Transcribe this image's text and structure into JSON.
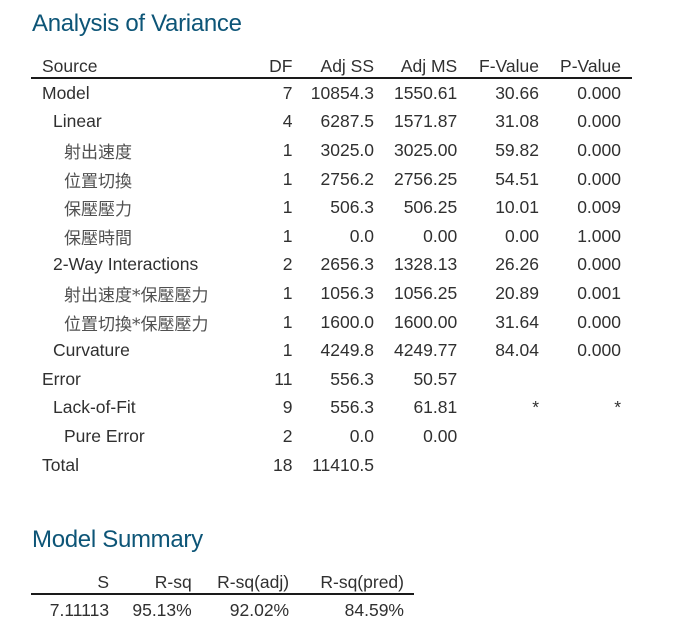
{
  "anova": {
    "title": "Analysis of Variance",
    "columns": [
      "Source",
      "DF",
      "Adj SS",
      "Adj MS",
      "F-Value",
      "P-Value"
    ],
    "rows": [
      {
        "source": "Model",
        "level": 0,
        "df": "7",
        "adj_ss": "10854.3",
        "adj_ms": "1550.61",
        "f_value": "30.66",
        "p_value": "0.000"
      },
      {
        "source": "Linear",
        "level": 1,
        "df": "4",
        "adj_ss": "6287.5",
        "adj_ms": "1571.87",
        "f_value": "31.08",
        "p_value": "0.000"
      },
      {
        "source": "射出速度",
        "level": 2,
        "df": "1",
        "adj_ss": "3025.0",
        "adj_ms": "3025.00",
        "f_value": "59.82",
        "p_value": "0.000"
      },
      {
        "source": "位置切換",
        "level": 2,
        "df": "1",
        "adj_ss": "2756.2",
        "adj_ms": "2756.25",
        "f_value": "54.51",
        "p_value": "0.000"
      },
      {
        "source": "保壓壓力",
        "level": 2,
        "df": "1",
        "adj_ss": "506.3",
        "adj_ms": "506.25",
        "f_value": "10.01",
        "p_value": "0.009"
      },
      {
        "source": "保壓時間",
        "level": 2,
        "df": "1",
        "adj_ss": "0.0",
        "adj_ms": "0.00",
        "f_value": "0.00",
        "p_value": "1.000"
      },
      {
        "source": "2-Way Interactions",
        "level": 1,
        "df": "2",
        "adj_ss": "2656.3",
        "adj_ms": "1328.13",
        "f_value": "26.26",
        "p_value": "0.000"
      },
      {
        "source": "射出速度*保壓壓力",
        "level": 2,
        "df": "1",
        "adj_ss": "1056.3",
        "adj_ms": "1056.25",
        "f_value": "20.89",
        "p_value": "0.001"
      },
      {
        "source": "位置切換*保壓壓力",
        "level": 2,
        "df": "1",
        "adj_ss": "1600.0",
        "adj_ms": "1600.00",
        "f_value": "31.64",
        "p_value": "0.000"
      },
      {
        "source": "Curvature",
        "level": 1,
        "df": "1",
        "adj_ss": "4249.8",
        "adj_ms": "4249.77",
        "f_value": "84.04",
        "p_value": "0.000"
      },
      {
        "source": "Error",
        "level": 0,
        "df": "11",
        "adj_ss": "556.3",
        "adj_ms": "50.57",
        "f_value": "",
        "p_value": ""
      },
      {
        "source": "Lack-of-Fit",
        "level": 1,
        "df": "9",
        "adj_ss": "556.3",
        "adj_ms": "61.81",
        "f_value": "*",
        "p_value": "*"
      },
      {
        "source": "Pure Error",
        "level": 2,
        "df": "2",
        "adj_ss": "0.0",
        "adj_ms": "0.00",
        "f_value": "",
        "p_value": ""
      },
      {
        "source": "Total",
        "level": 0,
        "df": "18",
        "adj_ss": "11410.5",
        "adj_ms": "",
        "f_value": "",
        "p_value": ""
      }
    ]
  },
  "model_summary": {
    "title": "Model Summary",
    "columns": [
      "S",
      "R-sq",
      "R-sq(adj)",
      "R-sq(pred)"
    ],
    "values": [
      "7.11113",
      "95.13%",
      "92.02%",
      "84.59%"
    ]
  },
  "colors": {
    "title": "#0d5577",
    "text": "#303030",
    "rule": "#1a1a1a"
  }
}
